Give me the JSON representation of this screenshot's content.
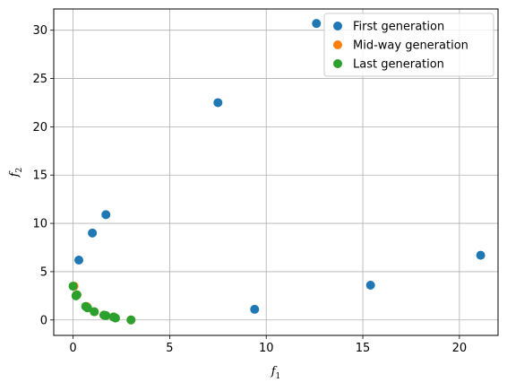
{
  "chart_data": {
    "type": "scatter",
    "title": "",
    "xlabel": "f",
    "xlabel_sub": "1",
    "ylabel": "f",
    "ylabel_sub": "2",
    "xlim": [
      -1.0,
      22.0
    ],
    "ylim": [
      -1.6,
      32.2
    ],
    "xticks": [
      0,
      5,
      10,
      15,
      20
    ],
    "yticks": [
      0,
      5,
      10,
      15,
      20,
      25,
      30
    ],
    "grid": true,
    "legend_position": "top-right",
    "series": [
      {
        "name": "First generation",
        "color": "#1f77b4",
        "points": [
          {
            "x": 12.6,
            "y": 30.7
          },
          {
            "x": 7.5,
            "y": 22.5
          },
          {
            "x": 1.7,
            "y": 10.9
          },
          {
            "x": 1.0,
            "y": 9.0
          },
          {
            "x": 0.3,
            "y": 6.2
          },
          {
            "x": 21.1,
            "y": 6.7
          },
          {
            "x": 15.4,
            "y": 3.6
          },
          {
            "x": 9.4,
            "y": 1.1
          }
        ]
      },
      {
        "name": "Mid-way generation",
        "color": "#ff7f0e",
        "points": [
          {
            "x": 0.05,
            "y": 3.5
          },
          {
            "x": 0.2,
            "y": 2.6
          },
          {
            "x": 0.7,
            "y": 1.4
          },
          {
            "x": 1.1,
            "y": 0.85
          },
          {
            "x": 1.6,
            "y": 0.5
          },
          {
            "x": 2.1,
            "y": 0.3
          },
          {
            "x": 3.0,
            "y": 0.0
          }
        ]
      },
      {
        "name": "Last generation",
        "color": "#2ca02c",
        "points": [
          {
            "x": 0.0,
            "y": 3.5
          },
          {
            "x": 0.15,
            "y": 2.5
          },
          {
            "x": 0.2,
            "y": 2.6
          },
          {
            "x": 0.65,
            "y": 1.4
          },
          {
            "x": 0.75,
            "y": 1.25
          },
          {
            "x": 1.1,
            "y": 0.85
          },
          {
            "x": 1.6,
            "y": 0.5
          },
          {
            "x": 1.7,
            "y": 0.45
          },
          {
            "x": 2.1,
            "y": 0.3
          },
          {
            "x": 2.2,
            "y": 0.2
          },
          {
            "x": 3.0,
            "y": 0.0
          }
        ]
      }
    ]
  }
}
